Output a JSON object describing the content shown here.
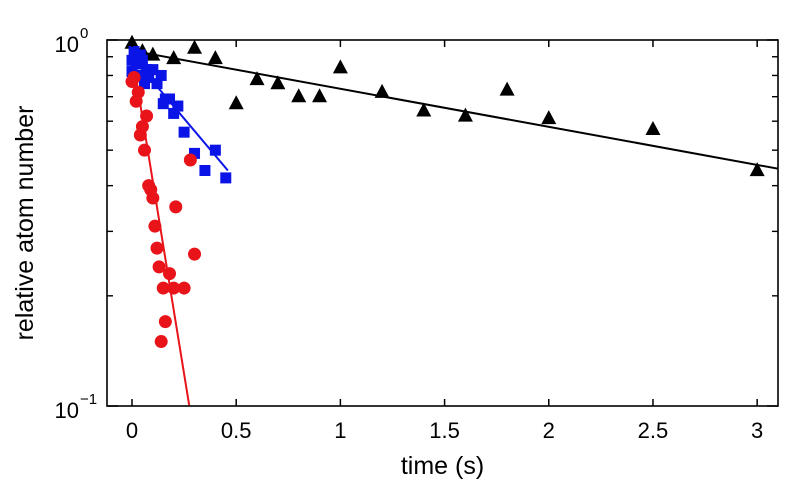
{
  "chart_data": {
    "type": "scatter",
    "title": "",
    "xlabel": "time (s)",
    "ylabel": "relative atom number",
    "xlim": [
      -0.12,
      3.1
    ],
    "ylim": [
      0.1,
      1.0
    ],
    "yscale": "log",
    "x_ticks": [
      0,
      0.5,
      1,
      1.5,
      2,
      2.5,
      3
    ],
    "x_tick_labels": [
      "0",
      "0.5",
      "1",
      "1.5",
      "2",
      "2.5",
      "3"
    ],
    "y_ticks": [
      {
        "value": 1.0,
        "base": "10",
        "exp": "0"
      },
      {
        "value": 0.1,
        "base": "10",
        "exp": "−1"
      }
    ],
    "grid": false,
    "legend": null,
    "series": [
      {
        "name": "black",
        "marker": "triangle",
        "color": "#000000",
        "points": [
          [
            0,
            0.98
          ],
          [
            0.05,
            0.93
          ],
          [
            0.1,
            0.91
          ],
          [
            0.2,
            0.89
          ],
          [
            0.3,
            0.95
          ],
          [
            0.4,
            0.89
          ],
          [
            0.5,
            0.67
          ],
          [
            0.6,
            0.78
          ],
          [
            0.7,
            0.76
          ],
          [
            0.8,
            0.7
          ],
          [
            0.9,
            0.7
          ],
          [
            1.0,
            0.84
          ],
          [
            1.2,
            0.72
          ],
          [
            1.4,
            0.64
          ],
          [
            1.6,
            0.62
          ],
          [
            1.8,
            0.73
          ],
          [
            2.0,
            0.61
          ],
          [
            2.5,
            0.57
          ],
          [
            3.0,
            0.44
          ]
        ],
        "fit": [
          [
            0,
            0.935
          ],
          [
            3.1,
            0.445
          ]
        ]
      },
      {
        "name": "blue",
        "marker": "square",
        "color": "#0a14e6",
        "points": [
          [
            0,
            0.82
          ],
          [
            0,
            0.88
          ],
          [
            0.01,
            0.93
          ],
          [
            0.02,
            0.86
          ],
          [
            0.03,
            0.8
          ],
          [
            0.04,
            0.91
          ],
          [
            0.05,
            0.88
          ],
          [
            0.06,
            0.76
          ],
          [
            0.07,
            0.83
          ],
          [
            0.08,
            0.79
          ],
          [
            0.1,
            0.83
          ],
          [
            0.12,
            0.76
          ],
          [
            0.14,
            0.8
          ],
          [
            0.15,
            0.67
          ],
          [
            0.16,
            0.69
          ],
          [
            0.18,
            0.69
          ],
          [
            0.2,
            0.63
          ],
          [
            0.22,
            0.66
          ],
          [
            0.25,
            0.56
          ],
          [
            0.3,
            0.49
          ],
          [
            0.35,
            0.44
          ],
          [
            0.4,
            0.5
          ],
          [
            0.45,
            0.42
          ]
        ],
        "fit": [
          [
            0,
            0.9
          ],
          [
            0.46,
            0.44
          ]
        ]
      },
      {
        "name": "red",
        "marker": "circle",
        "color": "#e8141a",
        "points": [
          [
            0,
            0.77
          ],
          [
            0.01,
            0.79
          ],
          [
            0.02,
            0.68
          ],
          [
            0.03,
            0.72
          ],
          [
            0.04,
            0.55
          ],
          [
            0.05,
            0.58
          ],
          [
            0.06,
            0.5
          ],
          [
            0.07,
            0.62
          ],
          [
            0.08,
            0.4
          ],
          [
            0.09,
            0.39
          ],
          [
            0.1,
            0.37
          ],
          [
            0.11,
            0.31
          ],
          [
            0.12,
            0.27
          ],
          [
            0.13,
            0.24
          ],
          [
            0.14,
            0.15
          ],
          [
            0.15,
            0.21
          ],
          [
            0.16,
            0.17
          ],
          [
            0.18,
            0.23
          ],
          [
            0.2,
            0.21
          ],
          [
            0.21,
            0.35
          ],
          [
            0.25,
            0.21
          ],
          [
            0.28,
            0.47
          ],
          [
            0.3,
            0.26
          ]
        ],
        "fit": [
          [
            0,
            0.92
          ],
          [
            0.275,
            0.1
          ]
        ]
      }
    ]
  }
}
